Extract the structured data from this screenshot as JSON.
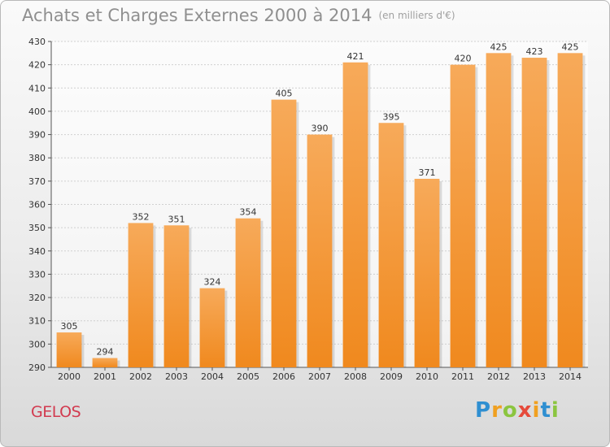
{
  "header": {
    "title": "Achats et Charges Externes 2000 à 2014",
    "subtitle": "(en milliers d'€)"
  },
  "footer": {
    "town": "GELOS",
    "logo_letters": [
      "P",
      "r",
      "o",
      "x",
      "i",
      "t",
      "i"
    ]
  },
  "colors": {
    "bar": "#f0891e",
    "bar_light": "#f7aa5a",
    "grid": "#d0d0d0",
    "axis": "#555555"
  },
  "chart_data": {
    "type": "bar",
    "title": "Achats et Charges Externes 2000 à 2014",
    "unit": "(en milliers d'€)",
    "categories": [
      "2000",
      "2001",
      "2002",
      "2003",
      "2004",
      "2005",
      "2006",
      "2007",
      "2008",
      "2009",
      "2010",
      "2011",
      "2012",
      "2013",
      "2014"
    ],
    "values": [
      305,
      294,
      352,
      351,
      324,
      354,
      405,
      390,
      421,
      395,
      371,
      420,
      425,
      423,
      425
    ],
    "ylim": [
      290,
      430
    ],
    "yticks": [
      290,
      300,
      310,
      320,
      330,
      340,
      350,
      360,
      370,
      380,
      390,
      400,
      410,
      420,
      430
    ],
    "grid": true,
    "xlabel": "",
    "ylabel": ""
  }
}
